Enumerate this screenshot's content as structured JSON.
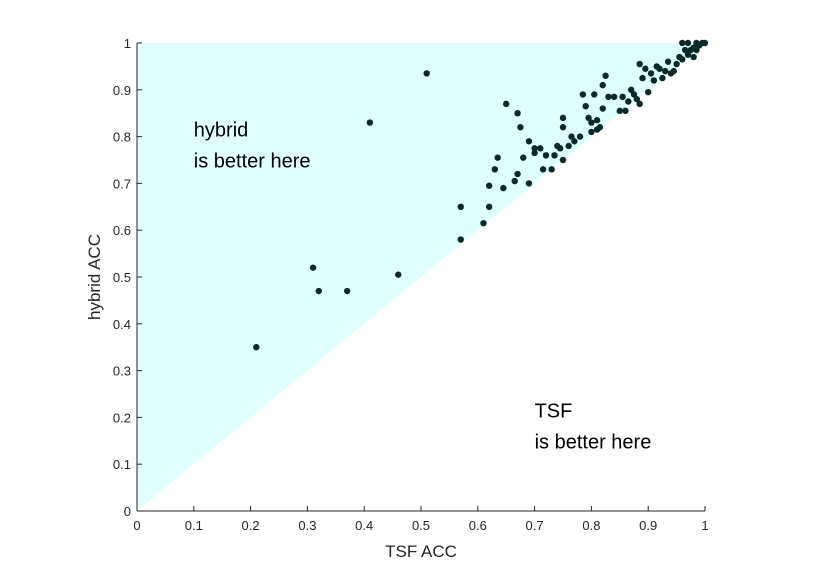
{
  "chart_data": {
    "type": "scatter",
    "xlabel": "TSF ACC",
    "ylabel": "hybrid ACC",
    "xlim": [
      0,
      1
    ],
    "ylim": [
      0,
      1
    ],
    "xticks": [
      "0",
      "0.1",
      "0.2",
      "0.3",
      "0.4",
      "0.5",
      "0.6",
      "0.7",
      "0.8",
      "0.9",
      "1"
    ],
    "yticks": [
      "0",
      "0.1",
      "0.2",
      "0.3",
      "0.4",
      "0.5",
      "0.6",
      "0.7",
      "0.8",
      "0.9",
      "1"
    ],
    "grid": false,
    "region_fill": "#e0ffff",
    "point_color": "#0a2a2a",
    "annotations": [
      {
        "lines": [
          "hybrid",
          "is better here"
        ],
        "x": 0.1,
        "y": 0.8
      },
      {
        "lines": [
          "TSF",
          "is better here"
        ],
        "x": 0.7,
        "y": 0.2
      }
    ],
    "points": [
      [
        0.21,
        0.35
      ],
      [
        0.31,
        0.52
      ],
      [
        0.32,
        0.47
      ],
      [
        0.37,
        0.47
      ],
      [
        0.41,
        0.83
      ],
      [
        0.46,
        0.505
      ],
      [
        0.51,
        0.935
      ],
      [
        0.57,
        0.58
      ],
      [
        0.57,
        0.65
      ],
      [
        0.61,
        0.615
      ],
      [
        0.62,
        0.65
      ],
      [
        0.62,
        0.695
      ],
      [
        0.63,
        0.73
      ],
      [
        0.635,
        0.755
      ],
      [
        0.645,
        0.69
      ],
      [
        0.65,
        0.87
      ],
      [
        0.665,
        0.705
      ],
      [
        0.67,
        0.72
      ],
      [
        0.67,
        0.85
      ],
      [
        0.675,
        0.82
      ],
      [
        0.68,
        0.755
      ],
      [
        0.69,
        0.7
      ],
      [
        0.69,
        0.79
      ],
      [
        0.7,
        0.765
      ],
      [
        0.7,
        0.775
      ],
      [
        0.71,
        0.775
      ],
      [
        0.715,
        0.73
      ],
      [
        0.72,
        0.76
      ],
      [
        0.73,
        0.73
      ],
      [
        0.735,
        0.76
      ],
      [
        0.74,
        0.78
      ],
      [
        0.745,
        0.775
      ],
      [
        0.75,
        0.75
      ],
      [
        0.75,
        0.82
      ],
      [
        0.75,
        0.84
      ],
      [
        0.76,
        0.78
      ],
      [
        0.765,
        0.8
      ],
      [
        0.77,
        0.79
      ],
      [
        0.78,
        0.8
      ],
      [
        0.785,
        0.89
      ],
      [
        0.79,
        0.865
      ],
      [
        0.795,
        0.84
      ],
      [
        0.8,
        0.81
      ],
      [
        0.8,
        0.83
      ],
      [
        0.805,
        0.89
      ],
      [
        0.81,
        0.815
      ],
      [
        0.81,
        0.835
      ],
      [
        0.815,
        0.82
      ],
      [
        0.82,
        0.86
      ],
      [
        0.82,
        0.91
      ],
      [
        0.825,
        0.93
      ],
      [
        0.83,
        0.885
      ],
      [
        0.84,
        0.885
      ],
      [
        0.85,
        0.855
      ],
      [
        0.855,
        0.885
      ],
      [
        0.86,
        0.855
      ],
      [
        0.865,
        0.875
      ],
      [
        0.87,
        0.9
      ],
      [
        0.875,
        0.89
      ],
      [
        0.88,
        0.88
      ],
      [
        0.885,
        0.87
      ],
      [
        0.885,
        0.955
      ],
      [
        0.89,
        0.925
      ],
      [
        0.895,
        0.945
      ],
      [
        0.9,
        0.895
      ],
      [
        0.905,
        0.935
      ],
      [
        0.91,
        0.92
      ],
      [
        0.915,
        0.95
      ],
      [
        0.92,
        0.945
      ],
      [
        0.925,
        0.925
      ],
      [
        0.93,
        0.94
      ],
      [
        0.935,
        0.96
      ],
      [
        0.94,
        0.935
      ],
      [
        0.945,
        0.94
      ],
      [
        0.95,
        0.955
      ],
      [
        0.955,
        0.97
      ],
      [
        0.96,
        1.0
      ],
      [
        0.96,
        0.965
      ],
      [
        0.965,
        0.985
      ],
      [
        0.97,
        1.0
      ],
      [
        0.97,
        0.975
      ],
      [
        0.975,
        0.985
      ],
      [
        0.98,
        0.97
      ],
      [
        0.98,
        0.99
      ],
      [
        0.985,
        1.0
      ],
      [
        0.985,
        0.985
      ],
      [
        0.99,
        0.995
      ],
      [
        0.995,
        1.0
      ],
      [
        1.0,
        1.0
      ]
    ]
  }
}
